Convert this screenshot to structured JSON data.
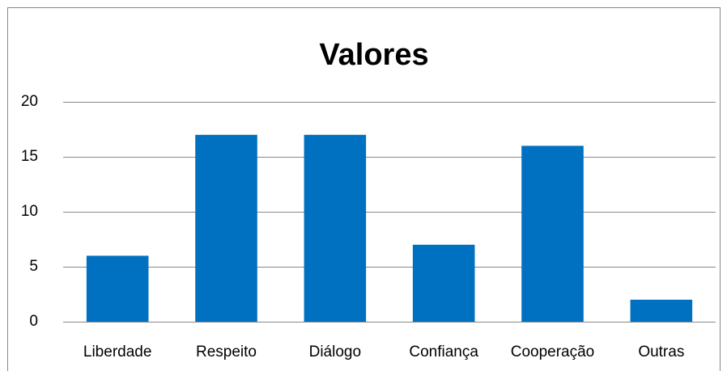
{
  "chart_data": {
    "type": "bar",
    "title": "Valores",
    "categories": [
      "Liberdade",
      "Respeito",
      "Diálogo",
      "Confiança",
      "Cooperação",
      "Outras"
    ],
    "values": [
      6,
      17,
      17,
      7,
      16,
      2
    ],
    "color": "#0070c0",
    "ylim": [
      0,
      20
    ],
    "yticks": [
      0,
      5,
      10,
      15,
      20
    ],
    "grid": true
  }
}
